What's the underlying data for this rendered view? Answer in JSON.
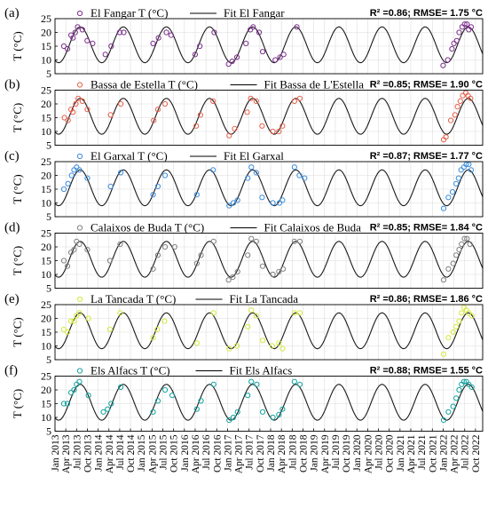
{
  "chart_data": {
    "type": "scatter",
    "ylabel": "T (°C)",
    "ylim": [
      5,
      25
    ],
    "yticks": [
      5,
      10,
      15,
      20,
      25
    ],
    "xticks": [
      "Jan 2013",
      "Apr 2013",
      "Jul 2013",
      "Oct 2013",
      "Jan 2014",
      "Apr 2014",
      "Jul 2014",
      "Oct 2014",
      "Jan 2015",
      "Apr 2015",
      "Jul 2015",
      "Oct 2015",
      "Jan 2016",
      "Apr 2016",
      "Jul 2016",
      "Oct 2016",
      "Jan 2017",
      "Apr 2017",
      "Jul 2017",
      "Oct 2017",
      "Jan 2018",
      "Apr 2018",
      "Jul 2018",
      "Oct 2018",
      "Jan 2019",
      "Apr 2019",
      "Jul 2019",
      "Oct 2019",
      "Jan 2020",
      "Apr 2020",
      "Jul 2020",
      "Oct 2020",
      "Jan 2021",
      "Apr 2021",
      "Jul 2021",
      "Oct 2021",
      "Jan 2022",
      "Apr 2022",
      "Jul 2022",
      "Oct 2022"
    ],
    "grid": true,
    "fit_model": {
      "mean": 15.5,
      "amplitude": 6.5,
      "coldest_month": 2.0,
      "x_end": 2022.92
    },
    "panels": [
      {
        "id": "a",
        "label": "(a)",
        "series_name": "El Fangar T (°C)",
        "fit_name": "Fit El Fangar",
        "stats": "R² =0.86; RMSE= 1.75 °C",
        "color": "#7E2F8E",
        "x": [
          "2013-03-15",
          "2013-04-15",
          "2013-05-15",
          "2013-06-01",
          "2013-06-20",
          "2013-07-10",
          "2013-08-20",
          "2013-09-30",
          "2013-11-15",
          "2014-03-01",
          "2014-04-20",
          "2014-07-01",
          "2014-08-05",
          "2015-04-10",
          "2015-05-25",
          "2015-08-01",
          "2015-09-10",
          "2016-04-01",
          "2016-05-10",
          "2016-09-10",
          "2017-01-10",
          "2017-02-10",
          "2017-03-20",
          "2017-06-05",
          "2017-07-12",
          "2017-08-05",
          "2017-09-25",
          "2017-10-25",
          "2018-02-10",
          "2018-03-20",
          "2018-04-20",
          "2018-08-10",
          "2022-01-01",
          "2022-02-10",
          "2022-03-15",
          "2022-04-01",
          "2022-04-25",
          "2022-05-15",
          "2022-06-10",
          "2022-07-01",
          "2022-07-20",
          "2022-08-05",
          "2022-08-25"
        ],
        "y": [
          15,
          14,
          19,
          18,
          20,
          22,
          21,
          17,
          16,
          12,
          15,
          20,
          20,
          16,
          18,
          20,
          19,
          12,
          15,
          20,
          8.5,
          9.5,
          11,
          16,
          21,
          22,
          20,
          13,
          10,
          11,
          12,
          22,
          8,
          10,
          14,
          16,
          17,
          20,
          22,
          23,
          23,
          21,
          22
        ]
      },
      {
        "id": "b",
        "label": "(b)",
        "series_name": "Bassa de Estella T (°C)",
        "fit_name": "Fit Bassa de L'Estella",
        "stats": "R² =0.85; RMSE= 1.90 °C",
        "color": "#E8604C",
        "x": [
          "2013-03-20",
          "2013-04-20",
          "2013-05-15",
          "2013-06-01",
          "2013-06-25",
          "2013-07-15",
          "2013-08-20",
          "2013-10-01",
          "2014-04-15",
          "2014-07-10",
          "2015-04-15",
          "2015-05-20",
          "2015-07-20",
          "2016-04-10",
          "2016-05-15",
          "2016-09-01",
          "2017-01-15",
          "2017-03-01",
          "2017-06-15",
          "2017-07-15",
          "2017-09-01",
          "2017-10-20",
          "2018-01-20",
          "2018-03-10",
          "2018-04-10",
          "2018-07-20",
          "2018-09-05",
          "2022-01-05",
          "2022-01-25",
          "2022-03-05",
          "2022-04-10",
          "2022-05-01",
          "2022-05-25",
          "2022-06-15",
          "2022-07-10",
          "2022-07-30",
          "2022-08-20"
        ],
        "y": [
          15,
          14,
          18,
          17,
          20,
          22,
          21,
          18,
          16,
          20,
          14,
          18,
          20,
          12,
          16,
          21,
          8.5,
          11,
          17,
          22,
          21,
          12,
          10,
          10,
          12,
          21,
          22,
          7,
          8,
          14,
          16,
          19,
          21,
          23,
          24,
          23,
          22
        ]
      },
      {
        "id": "c",
        "label": "(c)",
        "series_name": "El Garxal T (°C)",
        "fit_name": "Fit El Garxal",
        "stats": "R² =0.87; RMSE= 1.77 °C",
        "color": "#3A8DDE",
        "x": [
          "2013-03-15",
          "2013-04-20",
          "2013-05-20",
          "2013-06-10",
          "2013-07-01",
          "2013-07-25",
          "2013-10-01",
          "2014-04-15",
          "2014-07-10",
          "2015-04-10",
          "2015-05-20",
          "2015-07-20",
          "2016-04-15",
          "2016-09-01",
          "2017-01-15",
          "2017-02-20",
          "2017-03-25",
          "2017-06-20",
          "2017-07-20",
          "2017-09-01",
          "2017-10-20",
          "2018-01-20",
          "2018-03-15",
          "2018-04-10",
          "2018-07-20",
          "2018-09-01",
          "2018-10-15",
          "2022-01-05",
          "2022-02-15",
          "2022-03-20",
          "2022-04-20",
          "2022-05-10",
          "2022-06-01",
          "2022-06-25",
          "2022-07-15",
          "2022-08-05",
          "2022-08-25"
        ],
        "y": [
          15,
          17,
          20,
          22,
          23,
          22,
          19,
          16,
          21,
          13,
          16,
          20,
          13,
          22,
          9,
          10,
          11,
          19,
          23,
          21,
          12,
          10,
          10,
          11,
          23,
          20,
          19,
          8,
          12,
          14,
          17,
          19,
          22,
          23,
          24,
          24,
          22
        ]
      },
      {
        "id": "d",
        "label": "(d)",
        "series_name": "Calaixos de Buda T (°C)",
        "fit_name": "Fit Calaixos de Buda",
        "stats": "R² =0.85; RMSE= 1.84 °C",
        "color": "#808080",
        "x": [
          "2013-03-15",
          "2013-04-15",
          "2013-05-15",
          "2013-06-10",
          "2013-07-01",
          "2013-07-25",
          "2013-10-01",
          "2014-04-10",
          "2014-07-05",
          "2015-04-10",
          "2015-05-20",
          "2015-07-20",
          "2015-10-10",
          "2016-04-15",
          "2016-05-20",
          "2016-09-05",
          "2017-01-10",
          "2017-02-15",
          "2017-03-25",
          "2017-06-20",
          "2017-07-20",
          "2017-09-01",
          "2017-10-25",
          "2018-01-20",
          "2018-03-10",
          "2018-04-15",
          "2018-07-20",
          "2018-09-05",
          "2022-01-05",
          "2022-02-15",
          "2022-03-25",
          "2022-04-20",
          "2022-05-15",
          "2022-06-05",
          "2022-06-30",
          "2022-07-20",
          "2022-08-15"
        ],
        "y": [
          15,
          13,
          18,
          19,
          22,
          21,
          19,
          15,
          21,
          12,
          17,
          20,
          20,
          14,
          17,
          22,
          8,
          9,
          11,
          17,
          23,
          22,
          13,
          10,
          11,
          12,
          22,
          22,
          8,
          12,
          14,
          17,
          19,
          21,
          23,
          23,
          21
        ]
      },
      {
        "id": "e",
        "label": "(e)",
        "series_name": "La Tancada T (°C)",
        "fit_name": "Fit La Tancada",
        "stats": "R² =0.86; RMSE= 1.86 °C",
        "color": "#D5E83A",
        "x": [
          "2013-03-15",
          "2013-04-15",
          "2013-05-15",
          "2013-06-10",
          "2013-07-01",
          "2013-07-25",
          "2013-10-10",
          "2014-04-10",
          "2014-07-05",
          "2015-04-10",
          "2015-05-15",
          "2015-07-15",
          "2016-04-15",
          "2016-09-05",
          "2017-01-15",
          "2017-03-20",
          "2017-06-20",
          "2017-07-20",
          "2017-09-01",
          "2017-10-25",
          "2018-01-15",
          "2018-03-10",
          "2018-04-10",
          "2018-07-20",
          "2018-09-05",
          "2022-01-05",
          "2022-02-15",
          "2022-03-25",
          "2022-04-20",
          "2022-05-15",
          "2022-06-05",
          "2022-06-25",
          "2022-07-15",
          "2022-08-05",
          "2022-08-30"
        ],
        "y": [
          16,
          15,
          19,
          19,
          21,
          22,
          20,
          16,
          22,
          13,
          16,
          19,
          11,
          22,
          9,
          10,
          17,
          23,
          21,
          12,
          10,
          11,
          9,
          22,
          22,
          7,
          13,
          15,
          17,
          19,
          22,
          24,
          23,
          22,
          21
        ]
      },
      {
        "id": "f",
        "label": "(f)",
        "series_name": "Els Alfacs T (°C)",
        "fit_name": "Fit Els Alfacs",
        "stats": "R² =0.88; RMSE= 1.55 °C",
        "color": "#11A3A0",
        "x": [
          "2013-03-15",
          "2013-04-15",
          "2013-05-15",
          "2013-06-10",
          "2013-07-01",
          "2013-07-25",
          "2013-10-10",
          "2014-02-15",
          "2014-03-20",
          "2014-04-20",
          "2014-07-10",
          "2015-04-10",
          "2015-05-20",
          "2015-07-20",
          "2015-09-20",
          "2016-04-15",
          "2016-05-20",
          "2016-09-05",
          "2017-01-15",
          "2017-02-20",
          "2017-03-25",
          "2017-06-20",
          "2017-07-20",
          "2017-09-05",
          "2017-10-25",
          "2018-01-20",
          "2018-03-10",
          "2018-04-10",
          "2018-07-20",
          "2018-09-05",
          "2022-01-05",
          "2022-02-15",
          "2022-03-25",
          "2022-04-20",
          "2022-05-15",
          "2022-06-05",
          "2022-06-25",
          "2022-07-15",
          "2022-08-05",
          "2022-08-30"
        ],
        "y": [
          15,
          15,
          19,
          20,
          22,
          23,
          18,
          12,
          13,
          15,
          21,
          12,
          16,
          20,
          18,
          13,
          16,
          22,
          9,
          10,
          12,
          18,
          23,
          22,
          12,
          10,
          11,
          13,
          23,
          22,
          9,
          12,
          14,
          17,
          20,
          22,
          23,
          23,
          22,
          21
        ]
      }
    ]
  }
}
